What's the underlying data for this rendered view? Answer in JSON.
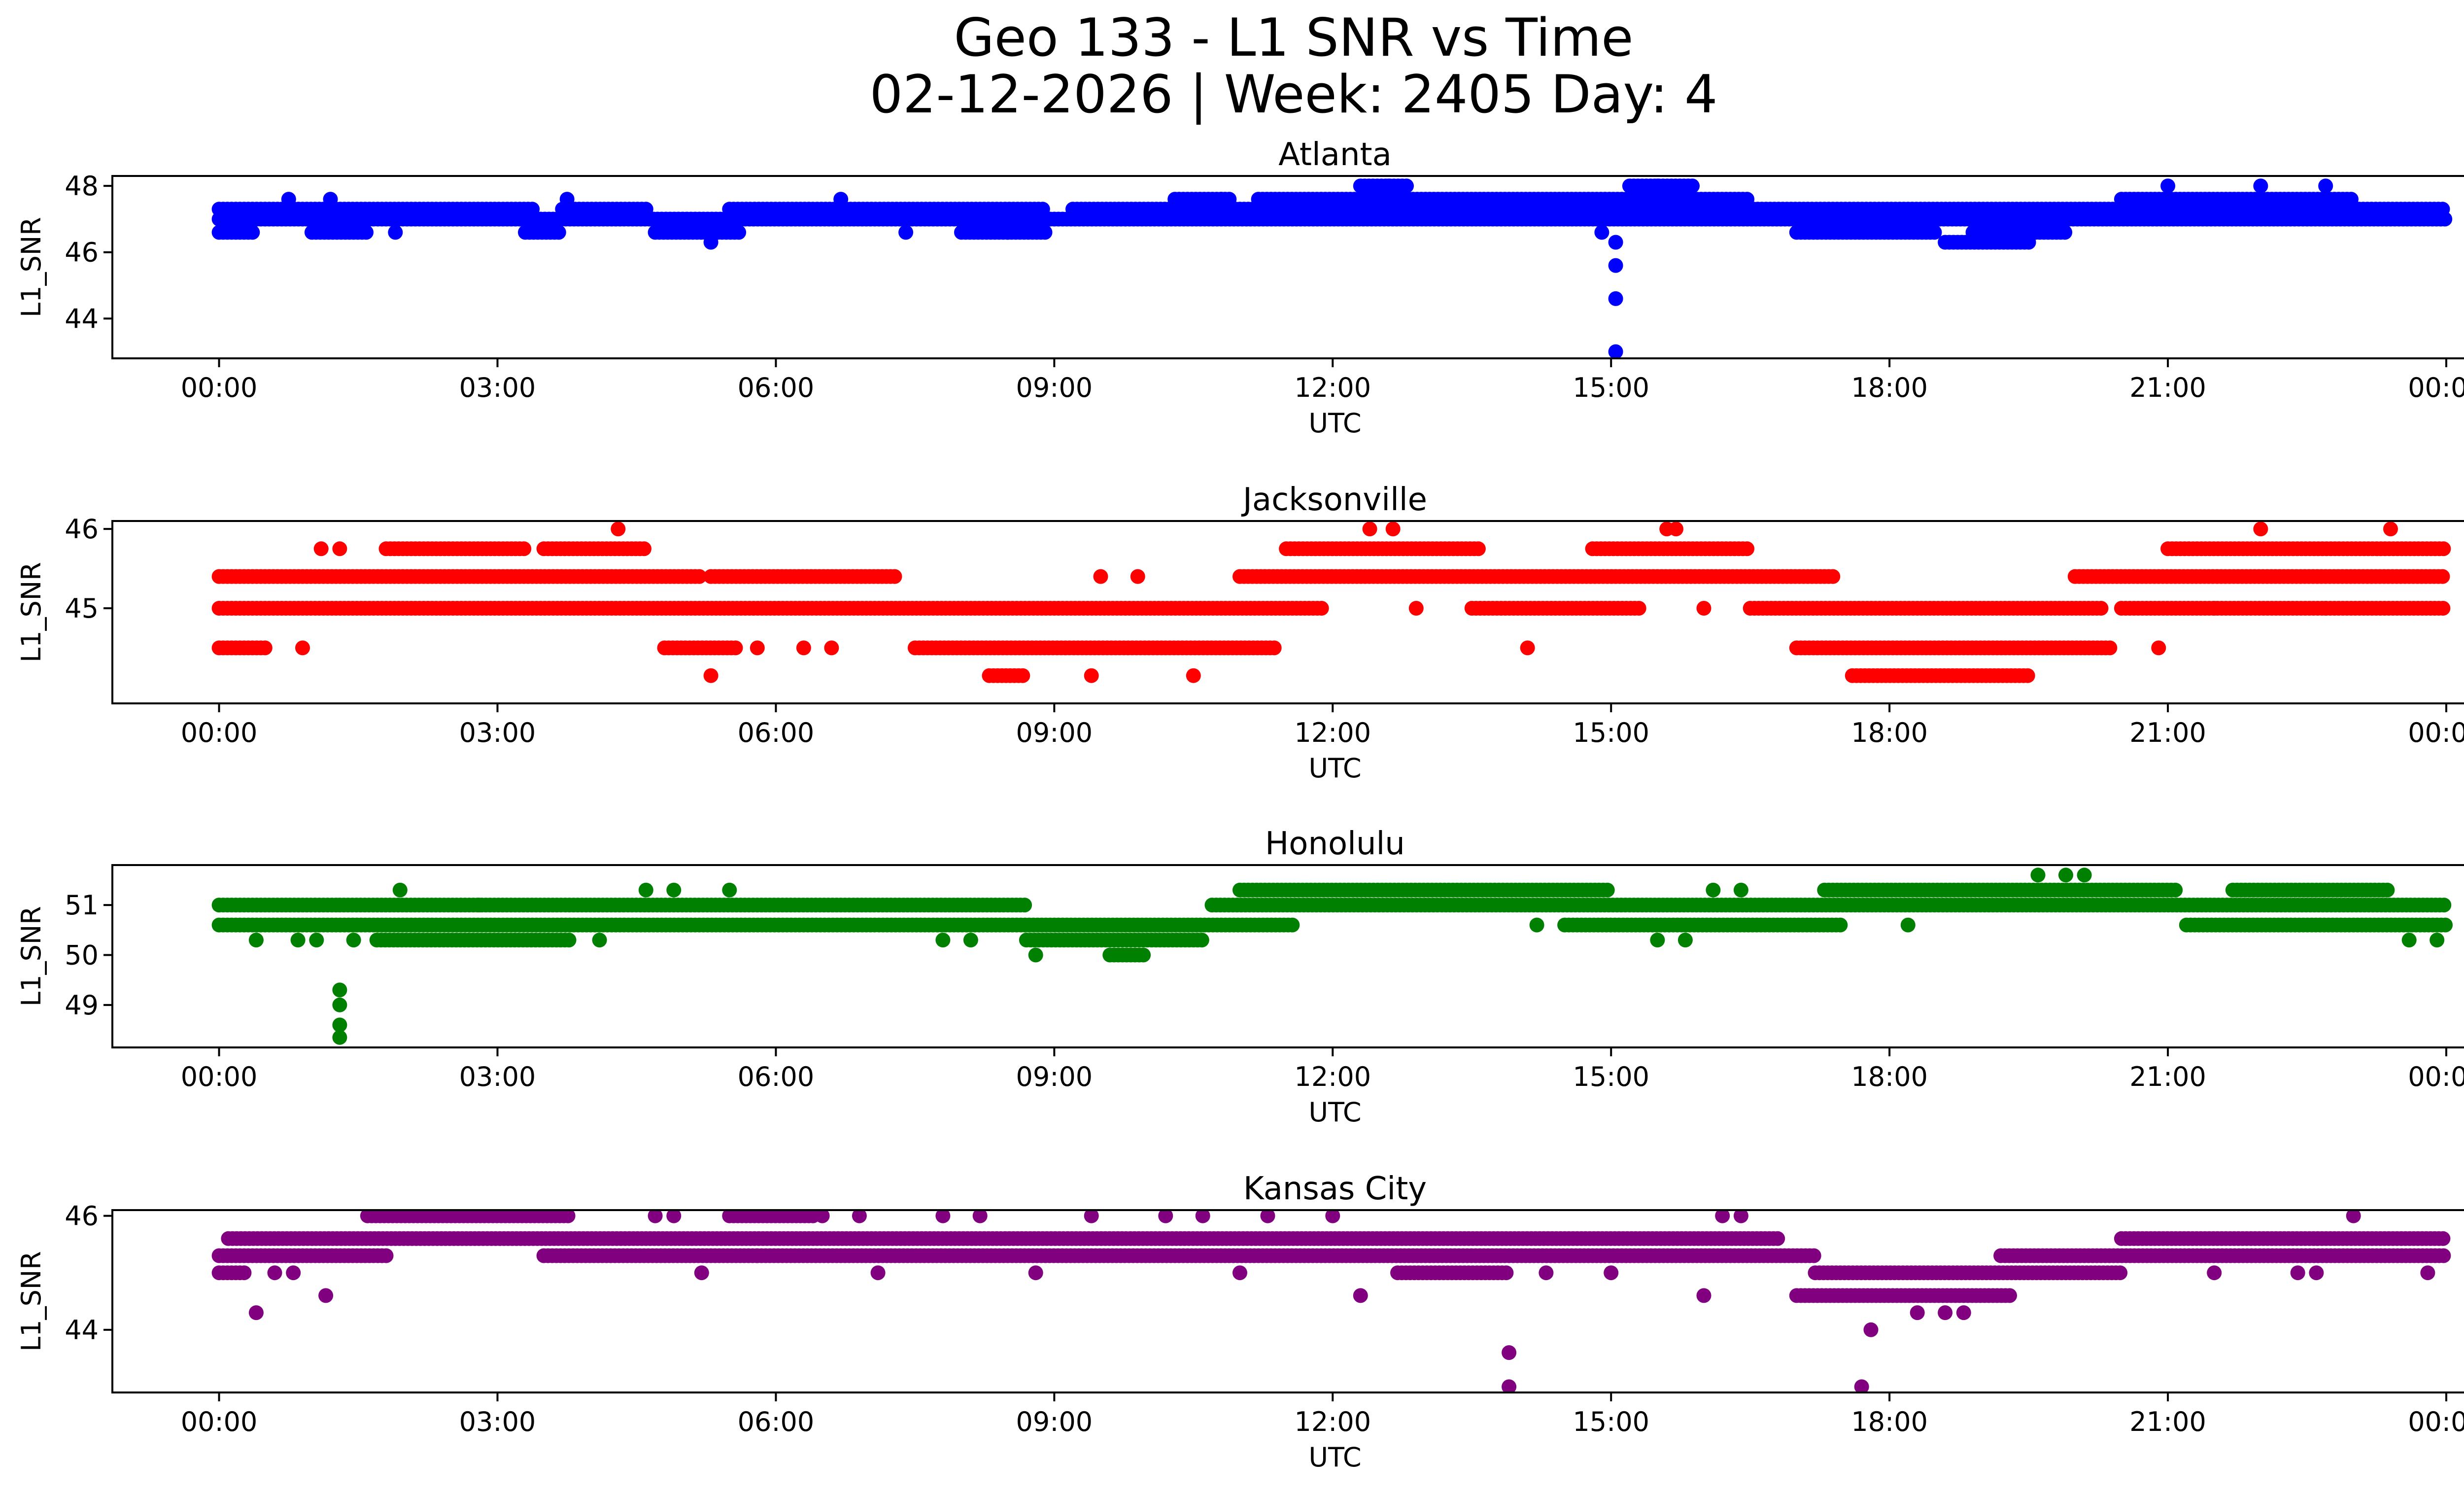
{
  "figure": {
    "title_line1": "Geo 133 - L1 SNR vs Time",
    "title_line2": "02-12-2026 | Week: 2405 Day: 4"
  },
  "chart_data": [
    {
      "type": "scatter",
      "title": "Atlanta",
      "xlabel": "UTC",
      "ylabel": "L1_SNR",
      "color": "#0000ff",
      "x_range_hours": [
        -1.15,
        25.2
      ],
      "ylim": [
        42.8,
        48.3
      ],
      "yticks": [
        44,
        46,
        48
      ],
      "ytick_labels": [
        "44",
        "46",
        "48"
      ],
      "xticks_hours": [
        0,
        3,
        6,
        9,
        12,
        15,
        18,
        21,
        24
      ],
      "xtick_labels": [
        "00:00",
        "03:00",
        "06:00",
        "09:00",
        "12:00",
        "15:00",
        "18:00",
        "21:00",
        "00:00"
      ],
      "bands": [
        {
          "y": 47.3,
          "x": [
            [
              0,
              3.4
            ],
            [
              3.7,
              4.6
            ],
            [
              5.5,
              8.9
            ],
            [
              9.2,
              24
            ]
          ]
        },
        {
          "y": 47.0,
          "x": [
            [
              0,
              24
            ]
          ]
        },
        {
          "y": 47.6,
          "x": [
            [
              10.3,
              10.9
            ],
            [
              11.2,
              16.5
            ],
            [
              20.5,
              23.0
            ]
          ]
        },
        {
          "y": 48.0,
          "x": [
            [
              12.3,
              12.8
            ],
            [
              15.2,
              15.9
            ]
          ]
        },
        {
          "y": 46.6,
          "x": [
            [
              0,
              0.4
            ],
            [
              1.0,
              1.6
            ],
            [
              3.3,
              3.7
            ],
            [
              4.7,
              5.6
            ],
            [
              8.0,
              8.9
            ],
            [
              17.0,
              18.5
            ],
            [
              18.9,
              19.9
            ]
          ]
        },
        {
          "y": 46.3,
          "x": [
            [
              18.6,
              19.5
            ]
          ]
        }
      ],
      "scattered": [
        {
          "x": 0.75,
          "y": 47.6
        },
        {
          "x": 1.2,
          "y": 47.6
        },
        {
          "x": 1.9,
          "y": 46.6
        },
        {
          "x": 3.75,
          "y": 47.6
        },
        {
          "x": 5.3,
          "y": 46.3
        },
        {
          "x": 6.7,
          "y": 47.6
        },
        {
          "x": 7.4,
          "y": 46.6
        },
        {
          "x": 8.5,
          "y": 46.6
        },
        {
          "x": 10.8,
          "y": 47.6
        },
        {
          "x": 11.8,
          "y": 47.3
        },
        {
          "x": 12.6,
          "y": 48.0
        },
        {
          "x": 15.5,
          "y": 48.0
        },
        {
          "x": 21.0,
          "y": 48.0
        },
        {
          "x": 22.0,
          "y": 48.0
        },
        {
          "x": 22.7,
          "y": 48.0
        },
        {
          "x": 14.9,
          "y": 46.6
        },
        {
          "x": 15.05,
          "y": 46.3
        },
        {
          "x": 15.05,
          "y": 45.6
        },
        {
          "x": 15.05,
          "y": 44.6
        },
        {
          "x": 15.05,
          "y": 43.0
        }
      ]
    },
    {
      "type": "scatter",
      "title": "Jacksonville",
      "xlabel": "UTC",
      "ylabel": "L1_SNR",
      "color": "#ff0000",
      "x_range_hours": [
        -1.15,
        25.2
      ],
      "ylim": [
        43.8,
        46.1
      ],
      "yticks": [
        45,
        46
      ],
      "ytick_labels": [
        "45",
        "46"
      ],
      "xticks_hours": [
        0,
        3,
        6,
        9,
        12,
        15,
        18,
        21,
        24
      ],
      "xtick_labels": [
        "00:00",
        "03:00",
        "06:00",
        "09:00",
        "12:00",
        "15:00",
        "18:00",
        "21:00",
        "00:00"
      ],
      "bands": [
        {
          "y": 45.0,
          "x": [
            [
              0,
              11.9
            ],
            [
              13.5,
              15.3
            ],
            [
              16.5,
              20.3
            ],
            [
              20.5,
              24
            ]
          ]
        },
        {
          "y": 45.4,
          "x": [
            [
              0,
              5.2
            ],
            [
              5.3,
              7.3
            ],
            [
              11.0,
              17.4
            ],
            [
              20.0,
              24
            ]
          ]
        },
        {
          "y": 45.75,
          "x": [
            [
              1.8,
              3.3
            ],
            [
              3.5,
              4.6
            ],
            [
              11.5,
              13.6
            ],
            [
              14.8,
              16.5
            ],
            [
              21.0,
              24
            ]
          ]
        },
        {
          "y": 44.5,
          "x": [
            [
              0,
              0.5
            ],
            [
              4.8,
              5.6
            ],
            [
              7.5,
              11.4
            ],
            [
              17.0,
              20.4
            ]
          ]
        },
        {
          "y": 44.15,
          "x": [
            [
              8.3,
              8.7
            ],
            [
              17.6,
              19.5
            ]
          ]
        }
      ],
      "scattered": [
        {
          "x": 1.1,
          "y": 45.75
        },
        {
          "x": 1.3,
          "y": 45.75
        },
        {
          "x": 0.9,
          "y": 44.5
        },
        {
          "x": 4.3,
          "y": 46.0
        },
        {
          "x": 5.3,
          "y": 44.15
        },
        {
          "x": 5.8,
          "y": 44.5
        },
        {
          "x": 6.3,
          "y": 44.5
        },
        {
          "x": 6.6,
          "y": 44.5
        },
        {
          "x": 9.4,
          "y": 44.15
        },
        {
          "x": 10.5,
          "y": 44.15
        },
        {
          "x": 9.5,
          "y": 45.4
        },
        {
          "x": 9.9,
          "y": 45.4
        },
        {
          "x": 12.4,
          "y": 46.0
        },
        {
          "x": 12.65,
          "y": 46.0
        },
        {
          "x": 12.9,
          "y": 45.0
        },
        {
          "x": 14.1,
          "y": 44.5
        },
        {
          "x": 15.6,
          "y": 46.0
        },
        {
          "x": 15.7,
          "y": 46.0
        },
        {
          "x": 16.0,
          "y": 45.0
        },
        {
          "x": 20.9,
          "y": 44.5
        },
        {
          "x": 22.0,
          "y": 46.0
        },
        {
          "x": 23.4,
          "y": 46.0
        },
        {
          "x": 22.7,
          "y": 45.0
        },
        {
          "x": 21.5,
          "y": 45.0
        }
      ]
    },
    {
      "type": "scatter",
      "title": "Honolulu",
      "xlabel": "UTC",
      "ylabel": "L1_SNR",
      "color": "#008000",
      "x_range_hours": [
        -1.15,
        25.2
      ],
      "ylim": [
        48.15,
        51.8
      ],
      "yticks": [
        49,
        50,
        51
      ],
      "ytick_labels": [
        "49",
        "50",
        "51"
      ],
      "xticks_hours": [
        0,
        3,
        6,
        9,
        12,
        15,
        18,
        21,
        24
      ],
      "xtick_labels": [
        "00:00",
        "03:00",
        "06:00",
        "09:00",
        "12:00",
        "15:00",
        "18:00",
        "21:00",
        "00:00"
      ],
      "bands": [
        {
          "y": 51.0,
          "x": [
            [
              0,
              1.3
            ],
            [
              1.3,
              8.7
            ],
            [
              10.7,
              24
            ]
          ]
        },
        {
          "y": 50.6,
          "x": [
            [
              0,
              11.6
            ],
            [
              14.5,
              17.5
            ],
            [
              21.2,
              24
            ]
          ]
        },
        {
          "y": 51.3,
          "x": [
            [
              11.0,
              15.0
            ],
            [
              17.3,
              21.1
            ],
            [
              21.7,
              23.4
            ]
          ]
        },
        {
          "y": 50.3,
          "x": [
            [
              1.7,
              3.8
            ],
            [
              8.7,
              10.6
            ]
          ]
        },
        {
          "y": 50.0,
          "x": [
            [
              9.6,
              10.0
            ]
          ]
        }
      ],
      "scattered": [
        {
          "x": 0.4,
          "y": 50.3
        },
        {
          "x": 0.85,
          "y": 50.3
        },
        {
          "x": 1.05,
          "y": 50.3
        },
        {
          "x": 1.45,
          "y": 50.3
        },
        {
          "x": 1.95,
          "y": 51.3
        },
        {
          "x": 2.8,
          "y": 51.0
        },
        {
          "x": 4.6,
          "y": 51.3
        },
        {
          "x": 4.9,
          "y": 51.3
        },
        {
          "x": 5.5,
          "y": 51.3
        },
        {
          "x": 4.1,
          "y": 50.3
        },
        {
          "x": 7.8,
          "y": 50.3
        },
        {
          "x": 8.1,
          "y": 50.3
        },
        {
          "x": 8.8,
          "y": 50.0
        },
        {
          "x": 14.2,
          "y": 50.6
        },
        {
          "x": 15.5,
          "y": 50.3
        },
        {
          "x": 15.8,
          "y": 50.3
        },
        {
          "x": 16.1,
          "y": 51.3
        },
        {
          "x": 16.4,
          "y": 51.3
        },
        {
          "x": 18.2,
          "y": 50.6
        },
        {
          "x": 19.6,
          "y": 51.6
        },
        {
          "x": 19.9,
          "y": 51.6
        },
        {
          "x": 20.1,
          "y": 51.6
        },
        {
          "x": 23.6,
          "y": 50.3
        },
        {
          "x": 23.9,
          "y": 50.3
        },
        {
          "x": 1.3,
          "y": 49.3
        },
        {
          "x": 1.3,
          "y": 49.0
        },
        {
          "x": 1.3,
          "y": 48.6
        },
        {
          "x": 1.3,
          "y": 48.35
        }
      ]
    },
    {
      "type": "scatter",
      "title": "Kansas City",
      "xlabel": "UTC",
      "ylabel": "L1_SNR",
      "color": "#800080",
      "x_range_hours": [
        -1.15,
        25.2
      ],
      "ylim": [
        42.9,
        46.1
      ],
      "yticks": [
        44,
        46
      ],
      "ytick_labels": [
        "44",
        "46"
      ],
      "xticks_hours": [
        0,
        3,
        6,
        9,
        12,
        15,
        18,
        21,
        24
      ],
      "xtick_labels": [
        "00:00",
        "03:00",
        "06:00",
        "09:00",
        "12:00",
        "15:00",
        "18:00",
        "21:00",
        "00:00"
      ],
      "bands": [
        {
          "y": 45.3,
          "x": [
            [
              0,
              1.8
            ],
            [
              3.5,
              5.8
            ],
            [
              5.8,
              17.2
            ],
            [
              19.2,
              24
            ]
          ]
        },
        {
          "y": 45.6,
          "x": [
            [
              0.1,
              16.8
            ],
            [
              20.5,
              24
            ]
          ]
        },
        {
          "y": 46.0,
          "x": [
            [
              1.6,
              3.8
            ],
            [
              5.5,
              6.4
            ]
          ]
        },
        {
          "y": 45.0,
          "x": [
            [
              0,
              0.3
            ],
            [
              12.7,
              13.9
            ],
            [
              17.2,
              20.5
            ]
          ]
        },
        {
          "y": 44.6,
          "x": [
            [
              17.0,
              19.3
            ]
          ]
        }
      ],
      "scattered": [
        {
          "x": 0.4,
          "y": 44.3
        },
        {
          "x": 1.15,
          "y": 44.6
        },
        {
          "x": 0.6,
          "y": 45.0
        },
        {
          "x": 0.8,
          "y": 45.0
        },
        {
          "x": 4.7,
          "y": 46.0
        },
        {
          "x": 4.9,
          "y": 46.0
        },
        {
          "x": 5.2,
          "y": 45.0
        },
        {
          "x": 6.5,
          "y": 46.0
        },
        {
          "x": 6.9,
          "y": 46.0
        },
        {
          "x": 7.1,
          "y": 45.0
        },
        {
          "x": 7.8,
          "y": 46.0
        },
        {
          "x": 8.2,
          "y": 46.0
        },
        {
          "x": 8.8,
          "y": 45.0
        },
        {
          "x": 9.4,
          "y": 46.0
        },
        {
          "x": 10.2,
          "y": 46.0
        },
        {
          "x": 10.6,
          "y": 46.0
        },
        {
          "x": 11.0,
          "y": 45.0
        },
        {
          "x": 11.3,
          "y": 46.0
        },
        {
          "x": 12.0,
          "y": 46.0
        },
        {
          "x": 12.3,
          "y": 44.6
        },
        {
          "x": 14.3,
          "y": 45.0
        },
        {
          "x": 15.0,
          "y": 45.0
        },
        {
          "x": 16.0,
          "y": 44.6
        },
        {
          "x": 16.2,
          "y": 46.0
        },
        {
          "x": 16.4,
          "y": 46.0
        },
        {
          "x": 17.8,
          "y": 44.0
        },
        {
          "x": 18.3,
          "y": 44.3
        },
        {
          "x": 18.6,
          "y": 44.3
        },
        {
          "x": 18.8,
          "y": 44.3
        },
        {
          "x": 21.5,
          "y": 45.0
        },
        {
          "x": 22.4,
          "y": 45.0
        },
        {
          "x": 22.6,
          "y": 45.0
        },
        {
          "x": 23.0,
          "y": 46.0
        },
        {
          "x": 23.8,
          "y": 45.0
        },
        {
          "x": 13.9,
          "y": 43.6
        },
        {
          "x": 13.9,
          "y": 43.0
        },
        {
          "x": 17.7,
          "y": 43.0
        }
      ]
    }
  ]
}
